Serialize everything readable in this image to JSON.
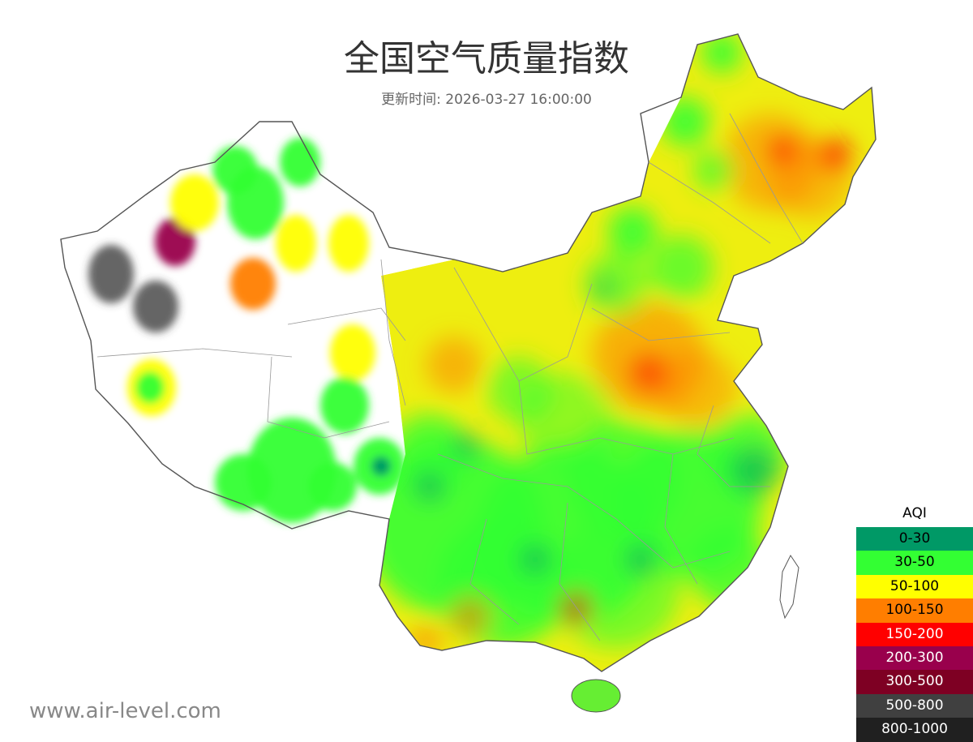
{
  "title": "全国空气质量指数",
  "subtitle": "更新时间: 2026-03-27 16:00:00",
  "watermark": "www.air-level.com",
  "legend": {
    "title": "AQI",
    "items": [
      {
        "label": "0-30",
        "color": "#009966",
        "text_color": "#000000"
      },
      {
        "label": "30-50",
        "color": "#33ff33",
        "text_color": "#000000"
      },
      {
        "label": "50-100",
        "color": "#ffff00",
        "text_color": "#000000"
      },
      {
        "label": "100-150",
        "color": "#ff7e00",
        "text_color": "#000000"
      },
      {
        "label": "150-200",
        "color": "#ff0000",
        "text_color": "#ffffff"
      },
      {
        "label": "200-300",
        "color": "#99004c",
        "text_color": "#ffffff"
      },
      {
        "label": "300-500",
        "color": "#7e0023",
        "text_color": "#ffffff"
      },
      {
        "label": "500-800",
        "color": "#404040",
        "text_color": "#ffffff"
      },
      {
        "label": "800-1000",
        "color": "#202020",
        "text_color": "#ffffff"
      }
    ]
  }
}
